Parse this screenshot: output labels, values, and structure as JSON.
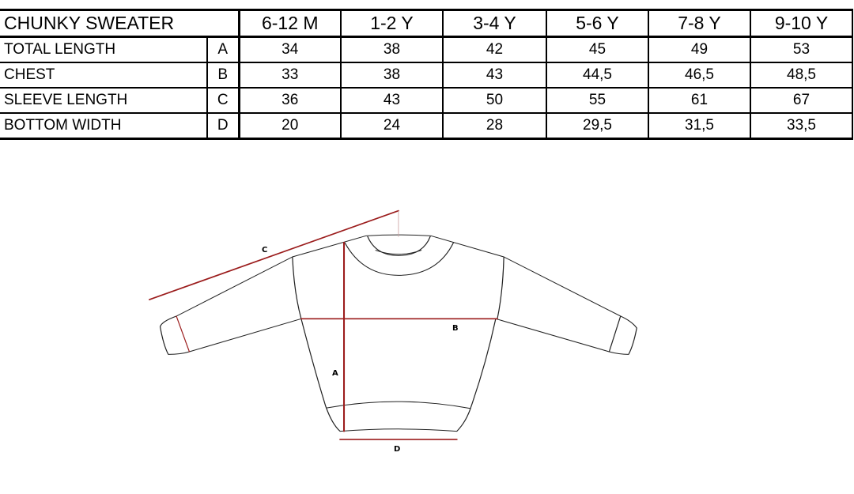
{
  "table": {
    "title": "CHUNKY SWEATER",
    "sizes": [
      "6-12 M",
      "1-2 Y",
      "3-4 Y",
      "5-6 Y",
      "7-8 Y",
      "9-10 Y"
    ],
    "rows": [
      {
        "label": "TOTAL LENGTH",
        "letter": "A",
        "values": [
          "34",
          "38",
          "42",
          "45",
          "49",
          "53"
        ]
      },
      {
        "label": "CHEST",
        "letter": "B",
        "values": [
          "33",
          "38",
          "43",
          "44,5",
          "46,5",
          "48,5"
        ]
      },
      {
        "label": "SLEEVE LENGTH",
        "letter": "C",
        "values": [
          "36",
          "43",
          "50",
          "55",
          "61",
          "67"
        ]
      },
      {
        "label": "BOTTOM WIDTH",
        "letter": "D",
        "values": [
          "20",
          "24",
          "28",
          "29,5",
          "31,5",
          "33,5"
        ]
      }
    ]
  },
  "diagram": {
    "labels": {
      "a": "A",
      "b": "B",
      "c": "C",
      "d": "D"
    },
    "measure_color": "#9b1c1c",
    "outline_color": "#222222"
  }
}
